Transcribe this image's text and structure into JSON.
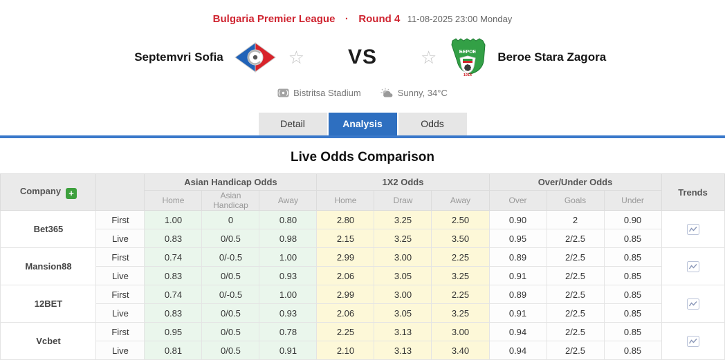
{
  "header": {
    "league": "Bulgaria Premier League",
    "separator": "·",
    "round": "Round 4",
    "datetime": "11-08-2025 23:00 Monday"
  },
  "match": {
    "home_team": "Septemvri Sofia",
    "away_team": "Beroe Stara Zagora",
    "vs_label": "VS",
    "stadium": "Bistritsa Stadium",
    "weather": "Sunny, 34°C",
    "away_badge_text": "БЕРОЕ",
    "away_badge_year": "1916"
  },
  "tabs": [
    {
      "label": "Detail",
      "active": false
    },
    {
      "label": "Analysis",
      "active": true
    },
    {
      "label": "Odds",
      "active": false
    }
  ],
  "section_title": "Live Odds Comparison",
  "colors": {
    "accent_red": "#cf2430",
    "active_tab_blue": "#2e6fc0",
    "tab_underline_blue": "#3a78ca",
    "asian_handicap_bg": "#eaf6ec",
    "x12_bg": "#fdf8d8",
    "add_button_green": "#3da03d"
  },
  "odds_table": {
    "company_col": "Company",
    "add_button": "+",
    "trends_col": "Trends",
    "row_labels": [
      "First",
      "Live"
    ],
    "groups": [
      {
        "label": "Asian Handicap Odds",
        "cols": [
          "Home",
          "Asian Handicap",
          "Away"
        ]
      },
      {
        "label": "1X2 Odds",
        "cols": [
          "Home",
          "Draw",
          "Away"
        ]
      },
      {
        "label": "Over/Under Odds",
        "cols": [
          "Over",
          "Goals",
          "Under"
        ]
      }
    ],
    "companies": [
      {
        "name": "Bet365",
        "first": {
          "ah": [
            "1.00",
            "0",
            "0.80"
          ],
          "x12": [
            "2.80",
            "3.25",
            "2.50"
          ],
          "ou": [
            "0.90",
            "2",
            "0.90"
          ]
        },
        "live": {
          "ah": [
            "0.83",
            "0/0.5",
            "0.98"
          ],
          "x12": [
            "2.15",
            "3.25",
            "3.50"
          ],
          "ou": [
            "0.95",
            "2/2.5",
            "0.85"
          ]
        }
      },
      {
        "name": "Mansion88",
        "first": {
          "ah": [
            "0.74",
            "0/-0.5",
            "1.00"
          ],
          "x12": [
            "2.99",
            "3.00",
            "2.25"
          ],
          "ou": [
            "0.89",
            "2/2.5",
            "0.85"
          ]
        },
        "live": {
          "ah": [
            "0.83",
            "0/0.5",
            "0.93"
          ],
          "x12": [
            "2.06",
            "3.05",
            "3.25"
          ],
          "ou": [
            "0.91",
            "2/2.5",
            "0.85"
          ]
        }
      },
      {
        "name": "12BET",
        "first": {
          "ah": [
            "0.74",
            "0/-0.5",
            "1.00"
          ],
          "x12": [
            "2.99",
            "3.00",
            "2.25"
          ],
          "ou": [
            "0.89",
            "2/2.5",
            "0.85"
          ]
        },
        "live": {
          "ah": [
            "0.83",
            "0/0.5",
            "0.93"
          ],
          "x12": [
            "2.06",
            "3.05",
            "3.25"
          ],
          "ou": [
            "0.91",
            "2/2.5",
            "0.85"
          ]
        }
      },
      {
        "name": "Vcbet",
        "first": {
          "ah": [
            "0.95",
            "0/0.5",
            "0.78"
          ],
          "x12": [
            "2.25",
            "3.13",
            "3.00"
          ],
          "ou": [
            "0.94",
            "2/2.5",
            "0.85"
          ]
        },
        "live": {
          "ah": [
            "0.81",
            "0/0.5",
            "0.91"
          ],
          "x12": [
            "2.10",
            "3.13",
            "3.40"
          ],
          "ou": [
            "0.94",
            "2/2.5",
            "0.85"
          ]
        }
      }
    ]
  }
}
